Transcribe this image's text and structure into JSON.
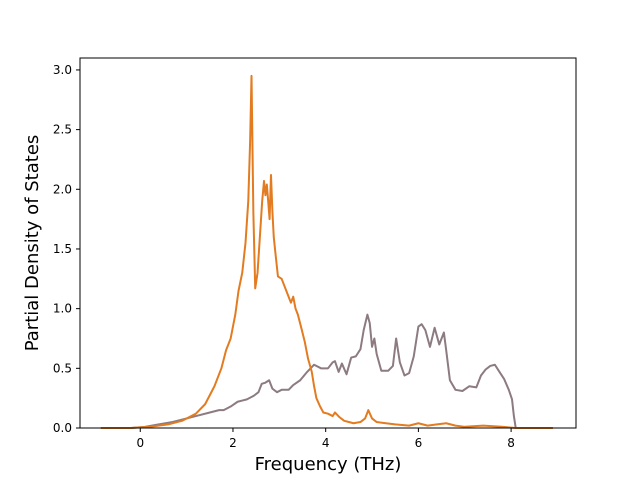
{
  "chart_data": {
    "type": "line",
    "title": "",
    "xlabel": "Frequency (THz)",
    "ylabel": "Partial Density of States",
    "xlim": [
      -1.3,
      9.4
    ],
    "ylim": [
      0.0,
      3.1
    ],
    "x_ticks": [
      0,
      2,
      4,
      6,
      8
    ],
    "x_tick_labels": [
      "0",
      "2",
      "4",
      "6",
      "8"
    ],
    "y_ticks": [
      0.0,
      0.5,
      1.0,
      1.5,
      2.0,
      2.5,
      3.0
    ],
    "y_tick_labels": [
      "0.0",
      "0.5",
      "1.0",
      "1.5",
      "2.0",
      "2.5",
      "3.0"
    ],
    "grid": false,
    "legend": "none",
    "series": [
      {
        "color": "#8c7b80",
        "x": [
          -0.85,
          -0.2,
          0.1,
          0.4,
          0.7,
          1.0,
          1.2,
          1.5,
          1.7,
          1.8,
          1.95,
          2.1,
          2.2,
          2.3,
          2.45,
          2.55,
          2.62,
          2.7,
          2.78,
          2.85,
          2.95,
          3.05,
          3.2,
          3.3,
          3.45,
          3.6,
          3.75,
          3.9,
          4.05,
          4.15,
          4.2,
          4.28,
          4.35,
          4.45,
          4.55,
          4.65,
          4.75,
          4.82,
          4.9,
          4.95,
          5.0,
          5.05,
          5.1,
          5.2,
          5.35,
          5.45,
          5.52,
          5.6,
          5.7,
          5.8,
          5.9,
          6.0,
          6.07,
          6.15,
          6.25,
          6.35,
          6.45,
          6.55,
          6.6,
          6.68,
          6.8,
          6.95,
          7.1,
          7.25,
          7.35,
          7.45,
          7.55,
          7.65,
          7.75,
          7.85,
          7.95,
          8.02,
          8.06,
          8.1,
          8.5,
          8.9
        ],
        "y": [
          0.0,
          0.0,
          0.01,
          0.03,
          0.05,
          0.08,
          0.1,
          0.13,
          0.15,
          0.15,
          0.18,
          0.22,
          0.23,
          0.24,
          0.27,
          0.3,
          0.37,
          0.38,
          0.4,
          0.33,
          0.3,
          0.32,
          0.32,
          0.36,
          0.4,
          0.47,
          0.53,
          0.5,
          0.5,
          0.55,
          0.56,
          0.47,
          0.54,
          0.45,
          0.59,
          0.6,
          0.66,
          0.82,
          0.95,
          0.88,
          0.68,
          0.75,
          0.62,
          0.48,
          0.48,
          0.52,
          0.75,
          0.55,
          0.44,
          0.46,
          0.6,
          0.85,
          0.87,
          0.82,
          0.68,
          0.84,
          0.7,
          0.8,
          0.65,
          0.4,
          0.32,
          0.31,
          0.35,
          0.34,
          0.44,
          0.49,
          0.52,
          0.53,
          0.47,
          0.41,
          0.32,
          0.24,
          0.1,
          0.0,
          0.0,
          0.0
        ]
      },
      {
        "color": "#e37b20",
        "x": [
          -0.85,
          -0.2,
          0.2,
          0.6,
          0.9,
          1.2,
          1.4,
          1.6,
          1.75,
          1.85,
          1.95,
          2.05,
          2.12,
          2.2,
          2.27,
          2.33,
          2.37,
          2.4,
          2.44,
          2.48,
          2.53,
          2.58,
          2.63,
          2.67,
          2.7,
          2.73,
          2.76,
          2.79,
          2.82,
          2.85,
          2.88,
          2.92,
          2.97,
          3.05,
          3.15,
          3.25,
          3.3,
          3.35,
          3.4,
          3.48,
          3.55,
          3.62,
          3.7,
          3.75,
          3.8,
          3.88,
          3.95,
          4.05,
          4.15,
          4.2,
          4.3,
          4.4,
          4.5,
          4.6,
          4.75,
          4.85,
          4.92,
          5.0,
          5.1,
          5.3,
          5.5,
          5.8,
          6.0,
          6.2,
          6.4,
          6.6,
          6.8,
          7.0,
          7.4,
          7.8,
          8.1,
          8.5,
          8.9
        ],
        "y": [
          0.0,
          0.0,
          0.01,
          0.03,
          0.06,
          0.12,
          0.2,
          0.35,
          0.5,
          0.65,
          0.75,
          0.95,
          1.15,
          1.3,
          1.55,
          1.9,
          2.4,
          2.95,
          1.8,
          1.17,
          1.3,
          1.6,
          1.9,
          2.07,
          1.95,
          2.04,
          1.9,
          1.75,
          2.12,
          1.82,
          1.6,
          1.45,
          1.27,
          1.25,
          1.15,
          1.05,
          1.1,
          1.0,
          0.95,
          0.83,
          0.72,
          0.58,
          0.47,
          0.35,
          0.25,
          0.18,
          0.13,
          0.12,
          0.1,
          0.13,
          0.09,
          0.06,
          0.05,
          0.04,
          0.05,
          0.08,
          0.15,
          0.08,
          0.05,
          0.04,
          0.03,
          0.02,
          0.04,
          0.02,
          0.03,
          0.04,
          0.02,
          0.01,
          0.02,
          0.01,
          0.0,
          0.0,
          0.0
        ]
      }
    ]
  }
}
